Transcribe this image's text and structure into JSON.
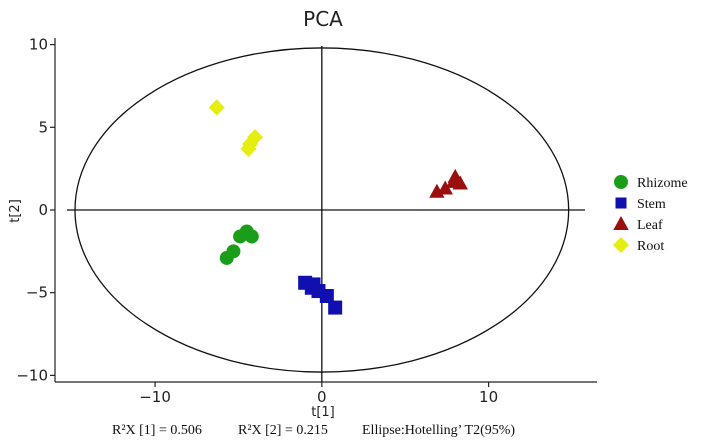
{
  "chart_data": {
    "type": "scatter",
    "title": "PCA",
    "xlabel": "t[1]",
    "ylabel": "t[2]",
    "xlim": [
      -16,
      16.5
    ],
    "ylim": [
      -10.4,
      10.4
    ],
    "x_ticks": [
      -10,
      0,
      10
    ],
    "y_ticks": [
      -10,
      -5,
      0,
      5,
      10
    ],
    "x_tick_labels": [
      "−10",
      "0",
      "10"
    ],
    "y_tick_labels": [
      "−10",
      "−5",
      "0",
      "5",
      "10"
    ],
    "grid": false,
    "legend_position": "right",
    "ellipse": {
      "cx": 0,
      "cy": 0,
      "rx": 14.8,
      "ry": 9.8
    },
    "series": [
      {
        "name": "Rhizome",
        "marker": "circle",
        "color": "#1a9e1a",
        "points": [
          [
            -4.5,
            -1.3
          ],
          [
            -4.9,
            -1.6
          ],
          [
            -4.2,
            -1.6
          ],
          [
            -5.3,
            -2.5
          ],
          [
            -5.7,
            -2.9
          ]
        ]
      },
      {
        "name": "Stem",
        "marker": "square",
        "color": "#1010b0",
        "points": [
          [
            -1.0,
            -4.4
          ],
          [
            -0.5,
            -4.5
          ],
          [
            -0.6,
            -4.7
          ],
          [
            -0.2,
            -4.9
          ],
          [
            0.3,
            -5.2
          ],
          [
            0.8,
            -5.9
          ]
        ]
      },
      {
        "name": "Leaf",
        "marker": "triangle",
        "color": "#9a0e0e",
        "points": [
          [
            6.9,
            1.1
          ],
          [
            7.4,
            1.3
          ],
          [
            7.9,
            1.7
          ],
          [
            8.3,
            1.6
          ],
          [
            8.0,
            2.0
          ]
        ]
      },
      {
        "name": "Root",
        "marker": "diamond",
        "color": "#e5ee10",
        "points": [
          [
            -6.3,
            6.2
          ],
          [
            -4.0,
            4.4
          ],
          [
            -4.3,
            4.0
          ],
          [
            -4.4,
            3.7
          ]
        ]
      }
    ],
    "stats_line": [
      "R²X [1]  = 0.506",
      "R²X [2] = 0.215",
      "Ellipse:Hotelling’ T2(95%)"
    ]
  }
}
